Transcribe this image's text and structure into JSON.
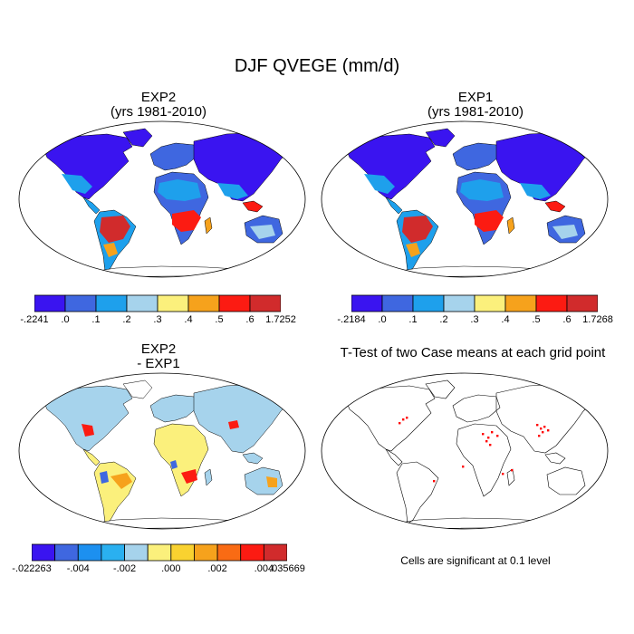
{
  "title": "DJF QVEGE (mm/d)",
  "panels": {
    "exp2": {
      "title": "EXP2",
      "subtitle": "(yrs 1981-2010)"
    },
    "exp1": {
      "title": "EXP1",
      "subtitle": "(yrs 1981-2010)"
    },
    "diff": {
      "title": "EXP2",
      "subtitle": "- EXP1"
    },
    "ttest": {
      "title": "T-Test of two Case means at each grid point",
      "note": "Cells are significant at 0.1 level"
    }
  },
  "colorbars": {
    "exp2": {
      "colors": [
        "#3a14f0",
        "#3f67e0",
        "#1ea0ec",
        "#a6d3ec",
        "#fbf07c",
        "#f6a21c",
        "#fc1b12",
        "#d12b2c"
      ],
      "labels": [
        "-.2241",
        ".0",
        ".1",
        ".2",
        ".3",
        ".4",
        ".5",
        ".6",
        "1.7252"
      ]
    },
    "exp1": {
      "colors": [
        "#3a14f0",
        "#3f67e0",
        "#1ea0ec",
        "#a6d3ec",
        "#fbf07c",
        "#f6a21c",
        "#fc1b12",
        "#d12b2c"
      ],
      "labels": [
        "-.2184",
        ".0",
        ".1",
        ".2",
        ".3",
        ".4",
        ".5",
        ".6",
        "1.7268"
      ]
    },
    "diff": {
      "colors": [
        "#3a14f0",
        "#3f67e0",
        "#1c90f0",
        "#2ab0f0",
        "#a6d3ec",
        "#fbf07c",
        "#f9d230",
        "#f6a21c",
        "#f96b14",
        "#fc1b12",
        "#d12b2c"
      ],
      "labels": [
        "-.022263",
        "-.004",
        "-.002",
        ".000",
        ".002",
        ".004",
        ".035669"
      ]
    }
  },
  "map_colors": {
    "ocean": "#ffffff",
    "outline": "#000000",
    "significant": "#ff0000"
  }
}
